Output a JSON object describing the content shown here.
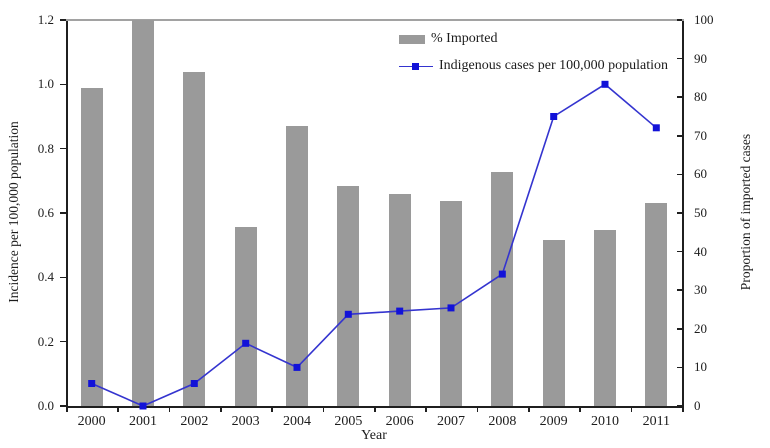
{
  "chart_data": {
    "type": "bar",
    "subtype": "combo-bar-line-dual-axis",
    "categories": [
      "2000",
      "2001",
      "2002",
      "2003",
      "2004",
      "2005",
      "2006",
      "2007",
      "2008",
      "2009",
      "2010",
      "2011"
    ],
    "series": [
      {
        "name": "% Imported",
        "type": "bar",
        "axis": "right",
        "color": "#9a9a9a",
        "values": [
          82.5,
          100,
          86.5,
          46.5,
          72.5,
          57,
          55,
          53,
          60.5,
          43,
          45.5,
          52.5
        ]
      },
      {
        "name": "Indigenous cases per 100,000 population",
        "type": "line",
        "axis": "left",
        "color": "#3434cf",
        "marker_color": "#1212d8",
        "marker": "square",
        "values": [
          0.07,
          0.0,
          0.07,
          0.195,
          0.12,
          0.285,
          0.295,
          0.305,
          0.41,
          0.9,
          1.0,
          0.865
        ]
      }
    ],
    "title": "",
    "xlabel": "Year",
    "left_axis": {
      "label": "Incidence per 100,000 population",
      "min": 0,
      "max": 1.2,
      "ticks": [
        "0.0",
        "0.2",
        "0.4",
        "0.6",
        "0.8",
        "1.0",
        "1.2"
      ]
    },
    "right_axis": {
      "label": "Proportion of imported cases",
      "min": 0,
      "max": 100,
      "ticks": [
        "0",
        "10",
        "20",
        "30",
        "40",
        "50",
        "60",
        "70",
        "80",
        "90",
        "100"
      ]
    },
    "legend": {
      "position": "top-center"
    },
    "grid": "off",
    "frame_top_line_color": "#a2a2a2"
  }
}
